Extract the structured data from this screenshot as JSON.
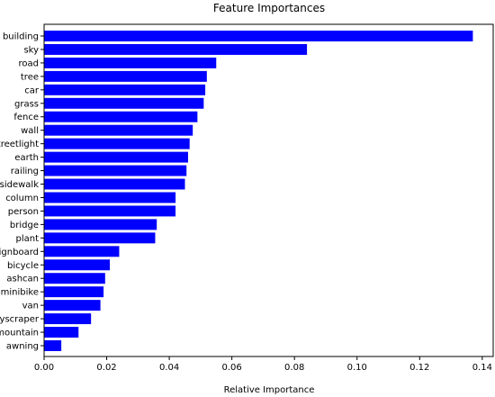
{
  "chart_data": {
    "type": "bar",
    "orientation": "horizontal",
    "title": "Feature Importances",
    "xlabel": "Relative Importance",
    "ylabel": "",
    "xlim": [
      0,
      0.1435
    ],
    "xticks": [
      0.0,
      0.02,
      0.04,
      0.06,
      0.08,
      0.1,
      0.12,
      0.14
    ],
    "xtick_labels": [
      "0.00",
      "0.02",
      "0.04",
      "0.06",
      "0.08",
      "0.10",
      "0.12",
      "0.14"
    ],
    "grid": false,
    "bar_color": "#0000ff",
    "categories": [
      "building",
      "sky",
      "road",
      "tree",
      "car",
      "grass",
      "fence",
      "wall",
      "streetlight",
      "earth",
      "railing",
      "sidewalk",
      "column",
      "person",
      "bridge",
      "plant",
      "signboard",
      "bicycle",
      "ashcan",
      "minibike",
      "van",
      "skyscraper",
      "mountain",
      "awning"
    ],
    "values": [
      0.137,
      0.084,
      0.055,
      0.052,
      0.0515,
      0.051,
      0.049,
      0.0475,
      0.0465,
      0.046,
      0.0455,
      0.045,
      0.042,
      0.042,
      0.036,
      0.0355,
      0.024,
      0.021,
      0.0195,
      0.019,
      0.018,
      0.015,
      0.011,
      0.0055
    ]
  }
}
